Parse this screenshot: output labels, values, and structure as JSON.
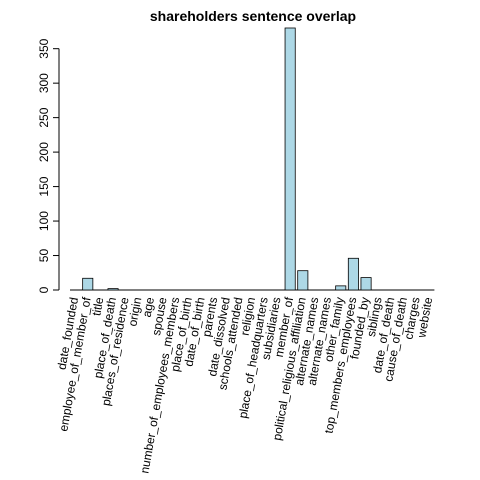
{
  "chart_data": {
    "type": "bar",
    "title": "shareholders sentence overlap",
    "xlabel": "",
    "ylabel": "",
    "ylim": [
      0,
      380
    ],
    "yticks": [
      0,
      50,
      100,
      150,
      200,
      250,
      300,
      350
    ],
    "bar_color": "#add8e6",
    "categories": [
      "date_founded",
      "employee_of_member_of",
      "title",
      "place_of_death",
      "places_of_residence",
      "origin",
      "age",
      "spouse",
      "number_of_employees_members",
      "place_of_birth",
      "date_of_birth",
      "parents",
      "date_dissolved",
      "schools_attended",
      "religion",
      "place_of_headquarters",
      "subsidiaries",
      "member_of",
      "political_religious_affiliation",
      "alternate_names",
      "alternate_names",
      "other_family",
      "top_members_employees",
      "founded_by",
      "siblings",
      "date_of_death",
      "cause_of_death",
      "charges",
      "website"
    ],
    "values": [
      0,
      17,
      0,
      2,
      0,
      0,
      0,
      0,
      0,
      0,
      0,
      0,
      0,
      0,
      0,
      0,
      0,
      380,
      28,
      0,
      0,
      6,
      46,
      18,
      0,
      0,
      0,
      0,
      0
    ]
  }
}
